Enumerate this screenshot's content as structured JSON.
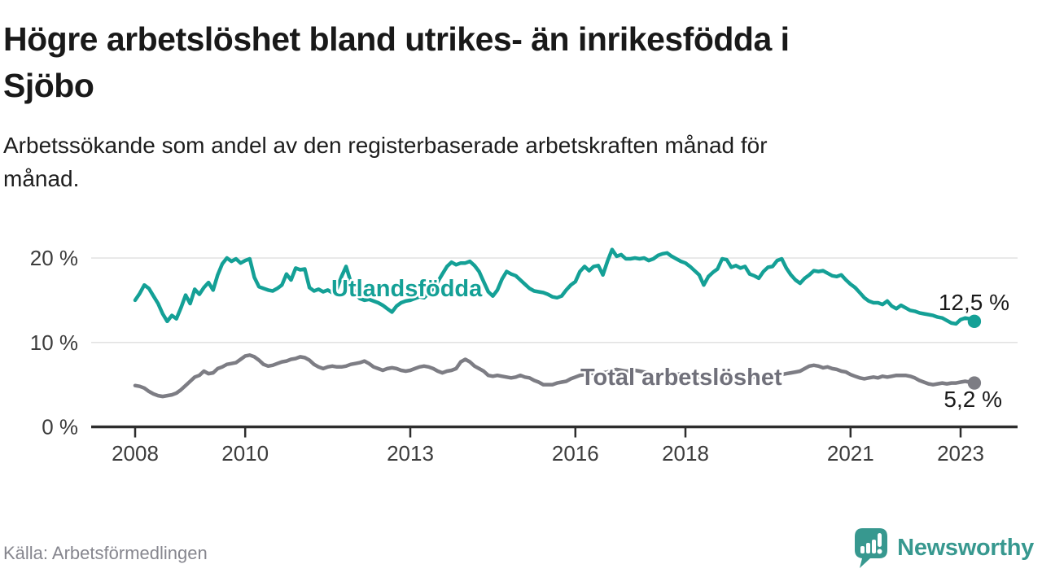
{
  "header": {
    "title": "Högre arbetslöshet bland utrikes- än inrikesfödda i\nSjöbo",
    "subtitle": "Arbetssökande som andel av den registerbaserade arbetskraften månad för\nmånad."
  },
  "footer": {
    "source": "Källa: Arbetsförmedlingen",
    "brand": "Newsworthy"
  },
  "colors": {
    "foreign_line": "#14A096",
    "total_line": "#7D7D84",
    "total_label_text": "#70707A",
    "grid": "#E2E2E2",
    "axis": "#2D2D2D",
    "tick_text": "#3C3C3C",
    "value_label_text": "#1A1A1A",
    "brand_teal": "#37988F",
    "source_text": "#86868E"
  },
  "chart_data": {
    "type": "line",
    "title": "Högre arbetslöshet bland utrikes- än inrikesfödda i Sjöbo",
    "subtitle": "Arbetssökande som andel av den registerbaserade arbetskraften månad för månad.",
    "unit": "%",
    "frequency": "monthly",
    "x_start": {
      "year": 2008,
      "month": 1
    },
    "x_end": {
      "year": 2023,
      "month": 4
    },
    "x_tick_years": [
      2008,
      2010,
      2013,
      2016,
      2018,
      2021,
      2023
    ],
    "y_ticks": [
      {
        "value": 0,
        "label": "0 %"
      },
      {
        "value": 10,
        "label": "10 %"
      },
      {
        "value": 20,
        "label": "20 %"
      }
    ],
    "ylim": [
      0,
      21.5
    ],
    "grid": "horizontal-only",
    "legend": "inline-labels",
    "series": [
      {
        "name": "Utlandsfödda",
        "color": "#14A096",
        "end_label": "12,5 %",
        "end_value": 12.5,
        "values": [
          15.0,
          15.8,
          16.8,
          16.4,
          15.5,
          14.6,
          13.4,
          12.5,
          13.2,
          12.8,
          14.1,
          15.6,
          14.6,
          16.3,
          15.7,
          16.5,
          17.1,
          16.2,
          18.0,
          19.3,
          20.0,
          19.6,
          19.9,
          19.4,
          19.7,
          19.9,
          17.7,
          16.6,
          16.4,
          16.2,
          16.1,
          16.4,
          16.8,
          18.1,
          17.4,
          18.8,
          18.6,
          18.7,
          16.5,
          16.1,
          16.3,
          16.0,
          16.2,
          15.9,
          16.4,
          17.8,
          19.0,
          17.2,
          15.8,
          15.2,
          15.0,
          15.1,
          14.9,
          14.7,
          14.4,
          14.0,
          13.6,
          14.3,
          14.7,
          14.9,
          15.0,
          15.2,
          15.4,
          15.3,
          15.8,
          16.4,
          17.2,
          18.1,
          19.0,
          19.5,
          19.2,
          19.4,
          19.4,
          19.6,
          19.1,
          18.4,
          17.2,
          16.0,
          15.5,
          16.2,
          17.5,
          18.4,
          18.1,
          17.9,
          17.4,
          16.9,
          16.4,
          16.1,
          16.0,
          15.9,
          15.7,
          15.4,
          15.3,
          15.5,
          16.2,
          16.8,
          17.2,
          18.4,
          19.0,
          18.5,
          19.0,
          19.1,
          18.0,
          19.6,
          21.0,
          20.2,
          20.4,
          19.9,
          19.9,
          20.0,
          19.9,
          20.0,
          19.7,
          19.9,
          20.3,
          20.5,
          20.6,
          20.2,
          19.9,
          19.6,
          19.4,
          19.0,
          18.5,
          18.0,
          16.8,
          17.8,
          18.3,
          18.7,
          19.9,
          19.8,
          18.9,
          19.1,
          18.8,
          19.0,
          18.1,
          17.9,
          17.6,
          18.4,
          18.9,
          19.0,
          19.7,
          19.9,
          18.8,
          18.0,
          17.4,
          17.0,
          17.6,
          18.0,
          18.5,
          18.4,
          18.5,
          18.2,
          17.9,
          17.8,
          18.0,
          17.4,
          16.9,
          16.5,
          15.9,
          15.3,
          14.9,
          14.7,
          14.7,
          14.5,
          14.9,
          14.3,
          14.0,
          14.4,
          14.1,
          13.8,
          13.7,
          13.5,
          13.4,
          13.3,
          13.2,
          13.0,
          12.9,
          12.6,
          12.3,
          12.2,
          12.7,
          12.9,
          12.8,
          12.5
        ]
      },
      {
        "name": "Total arbetslöshet",
        "color": "#7D7D84",
        "end_label": "5,2 %",
        "end_value": 5.2,
        "values": [
          4.9,
          4.8,
          4.6,
          4.2,
          3.9,
          3.7,
          3.6,
          3.7,
          3.8,
          4.0,
          4.4,
          4.9,
          5.4,
          5.9,
          6.1,
          6.6,
          6.3,
          6.4,
          6.9,
          7.1,
          7.4,
          7.5,
          7.6,
          8.0,
          8.4,
          8.5,
          8.3,
          7.9,
          7.4,
          7.2,
          7.3,
          7.5,
          7.7,
          7.8,
          8.0,
          8.1,
          8.3,
          8.2,
          7.9,
          7.4,
          7.1,
          6.9,
          7.1,
          7.2,
          7.1,
          7.1,
          7.2,
          7.4,
          7.5,
          7.6,
          7.8,
          7.5,
          7.1,
          6.9,
          6.7,
          6.9,
          7.0,
          6.9,
          6.7,
          6.6,
          6.7,
          6.9,
          7.1,
          7.2,
          7.1,
          6.9,
          6.6,
          6.4,
          6.6,
          6.7,
          6.9,
          7.7,
          8.0,
          7.7,
          7.2,
          6.9,
          6.6,
          6.1,
          6.0,
          6.1,
          6.0,
          5.9,
          5.8,
          5.9,
          6.1,
          5.9,
          5.8,
          5.5,
          5.3,
          5.0,
          5.0,
          5.0,
          5.2,
          5.3,
          5.4,
          5.7,
          5.9,
          6.1,
          6.2,
          6.4,
          6.3,
          6.2,
          6.4,
          6.5,
          6.7,
          6.8,
          6.7,
          6.6,
          6.6,
          6.7,
          6.6,
          6.5,
          6.4,
          6.2,
          6.3,
          6.4,
          6.3,
          6.2,
          6.2,
          6.3,
          6.3,
          6.2,
          6.1,
          5.9,
          5.8,
          5.7,
          5.8,
          5.9,
          5.8,
          5.8,
          5.9,
          6.0,
          6.1,
          6.0,
          6.0,
          5.9,
          5.8,
          5.9,
          6.0,
          6.1,
          6.1,
          6.2,
          6.3,
          6.4,
          6.5,
          6.6,
          6.9,
          7.2,
          7.3,
          7.2,
          7.0,
          7.1,
          6.9,
          6.8,
          6.6,
          6.5,
          6.2,
          6.0,
          5.8,
          5.7,
          5.8,
          5.9,
          5.8,
          6.0,
          5.9,
          6.0,
          6.1,
          6.1,
          6.1,
          6.0,
          5.8,
          5.5,
          5.3,
          5.1,
          5.0,
          5.1,
          5.2,
          5.1,
          5.2,
          5.2,
          5.3,
          5.4,
          5.3,
          5.2
        ]
      }
    ]
  }
}
